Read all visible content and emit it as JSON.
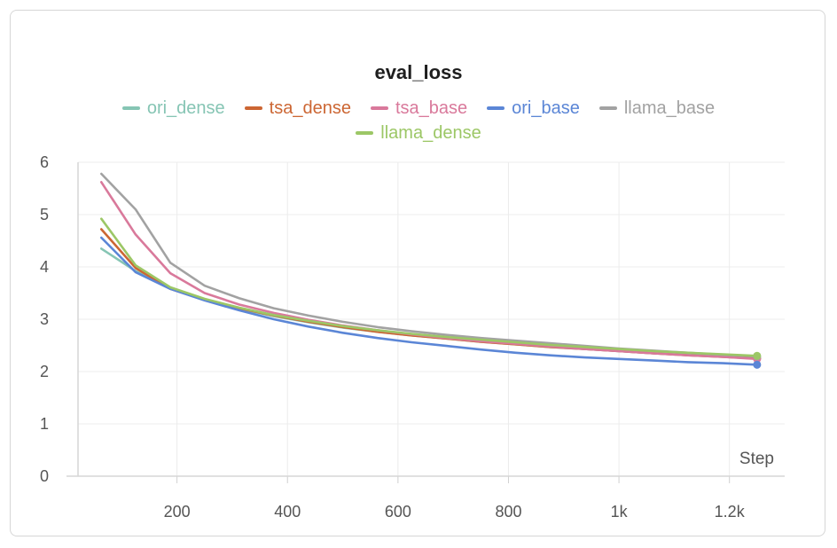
{
  "chart_data": {
    "type": "line",
    "title": "eval_loss",
    "xlabel": "Step",
    "ylabel": "",
    "xlim": [
      0,
      1300
    ],
    "ylim": [
      0,
      6
    ],
    "xticks": [
      200,
      400,
      600,
      800,
      1000,
      1200
    ],
    "xtick_labels": [
      "200",
      "400",
      "600",
      "800",
      "1k",
      "1.2k"
    ],
    "yticks": [
      0,
      1,
      2,
      3,
      4,
      5,
      6
    ],
    "ytick_labels": [
      "0",
      "1",
      "2",
      "3",
      "4",
      "5",
      "6"
    ],
    "grid": true,
    "legend_position": "top-center",
    "x": [
      63,
      125,
      188,
      250,
      313,
      375,
      438,
      500,
      563,
      625,
      688,
      750,
      813,
      875,
      938,
      1000,
      1063,
      1125,
      1188,
      1250
    ],
    "series": [
      {
        "name": "ori_dense",
        "color": "#86c5b4",
        "values": [
          4.35,
          3.92,
          3.6,
          3.38,
          3.2,
          3.06,
          2.94,
          2.84,
          2.76,
          2.69,
          2.63,
          2.57,
          2.52,
          2.47,
          2.43,
          2.39,
          2.35,
          2.32,
          2.29,
          2.26
        ]
      },
      {
        "name": "tsa_dense",
        "color": "#cc6633",
        "values": [
          4.72,
          3.98,
          3.58,
          3.37,
          3.21,
          3.07,
          2.95,
          2.85,
          2.76,
          2.69,
          2.63,
          2.57,
          2.52,
          2.47,
          2.43,
          2.39,
          2.35,
          2.31,
          2.28,
          2.25
        ]
      },
      {
        "name": "tsa_base",
        "color": "#d9799b",
        "values": [
          5.62,
          4.62,
          3.88,
          3.5,
          3.28,
          3.12,
          2.99,
          2.88,
          2.79,
          2.71,
          2.64,
          2.58,
          2.53,
          2.48,
          2.43,
          2.39,
          2.35,
          2.31,
          2.28,
          2.24
        ]
      },
      {
        "name": "ori_base",
        "color": "#5b86d6",
        "values": [
          4.56,
          3.9,
          3.58,
          3.36,
          3.17,
          3.0,
          2.86,
          2.74,
          2.64,
          2.56,
          2.49,
          2.42,
          2.36,
          2.31,
          2.27,
          2.24,
          2.21,
          2.18,
          2.16,
          2.13
        ]
      },
      {
        "name": "llama_base",
        "color": "#a2a2a2",
        "values": [
          5.78,
          5.1,
          4.08,
          3.64,
          3.4,
          3.21,
          3.07,
          2.95,
          2.85,
          2.77,
          2.7,
          2.64,
          2.59,
          2.54,
          2.49,
          2.44,
          2.4,
          2.36,
          2.32,
          2.29
        ]
      },
      {
        "name": "llama_dense",
        "color": "#9cc766",
        "values": [
          4.92,
          4.03,
          3.61,
          3.39,
          3.22,
          3.08,
          2.97,
          2.87,
          2.79,
          2.72,
          2.66,
          2.61,
          2.56,
          2.51,
          2.47,
          2.43,
          2.39,
          2.36,
          2.33,
          2.3
        ]
      }
    ]
  }
}
